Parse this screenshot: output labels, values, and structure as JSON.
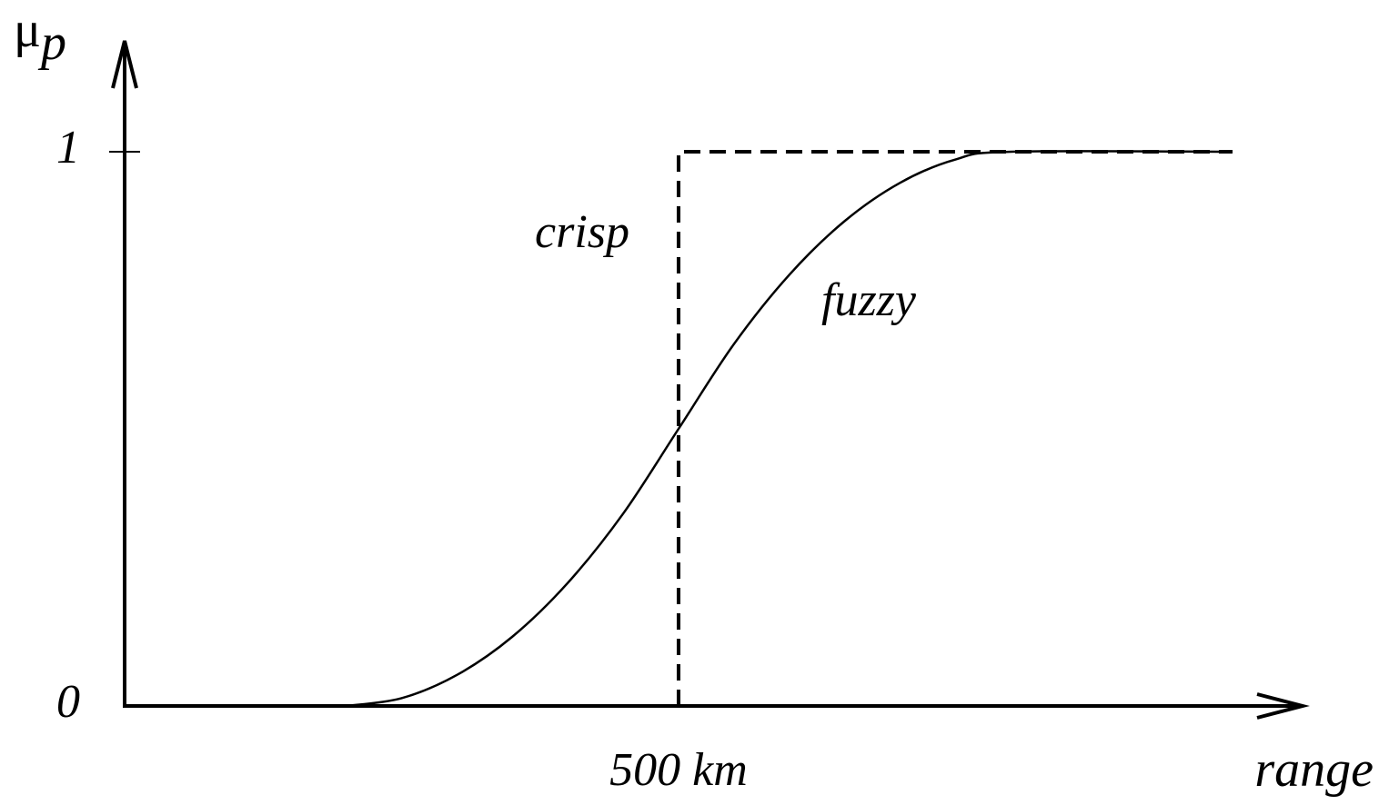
{
  "chart_data": {
    "type": "line",
    "y_label": {
      "symbol": "μ",
      "subscript": "p"
    },
    "x_label": "range",
    "xlim": [
      0,
      1060
    ],
    "ylim": [
      0,
      1.2
    ],
    "xticks": [
      {
        "value": 500,
        "label": "500 km"
      }
    ],
    "yticks": [
      0,
      1
    ],
    "series": [
      {
        "name": "crisp",
        "color": "#000000",
        "dashed": true,
        "x": [
          500,
          500,
          1000
        ],
        "values": [
          0,
          1,
          1
        ]
      },
      {
        "name": "fuzzy",
        "color": "#000000",
        "dashed": false,
        "x": [
          200,
          250,
          300,
          350,
          400,
          450,
          500,
          550,
          600,
          650,
          700,
          750,
          800,
          1000
        ],
        "values": [
          0,
          0.014,
          0.056,
          0.125,
          0.222,
          0.347,
          0.5,
          0.653,
          0.778,
          0.875,
          0.944,
          0.986,
          1,
          1
        ]
      }
    ]
  }
}
